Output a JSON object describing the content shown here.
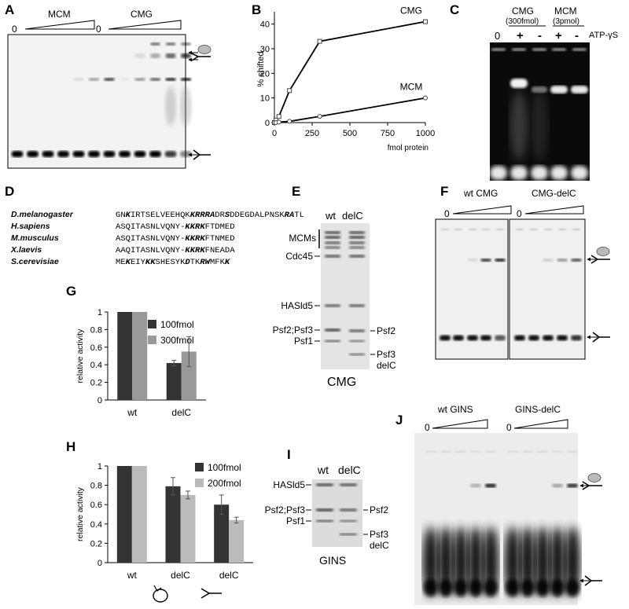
{
  "panels": {
    "A": {
      "letter": "A",
      "groups": [
        {
          "zero": "0",
          "label": "MCM"
        },
        {
          "zero": "0",
          "label": "CMG"
        }
      ]
    },
    "B": {
      "letter": "B"
    },
    "C": {
      "letter": "C",
      "cmg": "CMG",
      "cmg_amt": "(300fmol)",
      "mcm": "MCM",
      "mcm_amt": "(3pmol)",
      "zero": "0",
      "signs": [
        "+",
        "-",
        "+",
        "-"
      ],
      "atp": "ATP-γS"
    },
    "D": {
      "letter": "D",
      "rows": [
        {
          "species": "D.melanogaster",
          "seq": "GNKIRTSELVEEHQKKRRRADRSDDEGDALPNSKRATL"
        },
        {
          "species": "H.sapiens",
          "seq": "ASQITASNLVQNY-KKRKFTDMED"
        },
        {
          "species": "M.musculus",
          "seq": "ASQITASNLVQNY-KKRKFTNMED"
        },
        {
          "species": "X.laevis",
          "seq": "AAQITASNLVQNY-KKRKFNEADA"
        },
        {
          "species": "S.cerevisiae",
          "seq": "MEKEIYKKSHESYKDTKRWMFKK"
        }
      ]
    },
    "E": {
      "letter": "E",
      "lanes": [
        "wt",
        "delC"
      ],
      "left_labels": [
        "MCMs",
        "Cdc45",
        "HASld5",
        "Psf2;Psf3",
        "Psf1"
      ],
      "right_labels": [
        "Psf2",
        "Psf3",
        "delC"
      ],
      "caption": "CMG"
    },
    "F": {
      "letter": "F",
      "groups": [
        {
          "zero": "0",
          "label": "wt CMG"
        },
        {
          "zero": "0",
          "label": "CMG-delC"
        }
      ]
    },
    "G": {
      "letter": "G",
      "yticks": [
        "0",
        "0.2",
        "0.4",
        "0.6",
        "0.8",
        "1"
      ],
      "ylabel": "relative activity",
      "categories": [
        "wt",
        "delC"
      ],
      "legend": [
        "100fmol",
        "300fmol"
      ]
    },
    "H": {
      "letter": "H",
      "yticks": [
        "0",
        "0.2",
        "0.4",
        "0.6",
        "0.8",
        "1"
      ],
      "ylabel": "relative activity",
      "categories": [
        "wt",
        "delC",
        "delC"
      ],
      "legend": [
        "100fmol",
        "200fmol"
      ]
    },
    "I": {
      "letter": "I",
      "lanes": [
        "wt",
        "delC"
      ],
      "left_labels": [
        "HASld5",
        "Psf2;Psf3",
        "Psf1"
      ],
      "right_labels": [
        "Psf2",
        "Psf3",
        "delC"
      ],
      "caption": "GINS"
    },
    "J": {
      "letter": "J",
      "groups": [
        {
          "zero": "0",
          "label": "wt GINS"
        },
        {
          "zero": "0",
          "label": "GINS-delC"
        }
      ]
    }
  },
  "chart_data": [
    {
      "type": "line",
      "panel": "B",
      "ylabel": "% shifted",
      "xlabel": "fmol protein",
      "xlim": [
        0,
        1000
      ],
      "ylim": [
        0,
        45
      ],
      "xticks": [
        0,
        250,
        500,
        750,
        1000
      ],
      "yticks": [
        0,
        10,
        20,
        30,
        40
      ],
      "series": [
        {
          "name": "CMG",
          "x": [
            0,
            10,
            30,
            100,
            300,
            1000
          ],
          "y": [
            0,
            1,
            2.5,
            13,
            33,
            41
          ]
        },
        {
          "name": "MCM",
          "x": [
            0,
            10,
            30,
            100,
            300,
            1000
          ],
          "y": [
            0,
            0,
            0.2,
            0.5,
            2.5,
            10
          ]
        }
      ]
    },
    {
      "type": "bar",
      "panel": "G",
      "ylabel": "relative activity",
      "ylim": [
        0,
        1
      ],
      "categories": [
        "wt",
        "delC"
      ],
      "series": [
        {
          "name": "100fmol",
          "color": "#333333",
          "values": [
            1,
            0.42
          ],
          "errors": [
            0,
            0.03
          ]
        },
        {
          "name": "300fmol",
          "color": "#999999",
          "values": [
            1,
            0.55
          ],
          "errors": [
            0,
            0.17
          ]
        }
      ]
    },
    {
      "type": "bar",
      "panel": "H",
      "ylabel": "relative activity",
      "ylim": [
        0,
        1
      ],
      "categories": [
        "wt",
        "delC",
        "delC"
      ],
      "series": [
        {
          "name": "100fmol",
          "color": "#333333",
          "values": [
            1,
            0.79,
            0.6
          ],
          "errors": [
            0,
            0.09,
            0.1
          ]
        },
        {
          "name": "200fmol",
          "color": "#bbbbbb",
          "values": [
            1,
            0.7,
            0.44
          ],
          "errors": [
            0,
            0.04,
            0.03
          ]
        }
      ]
    }
  ]
}
